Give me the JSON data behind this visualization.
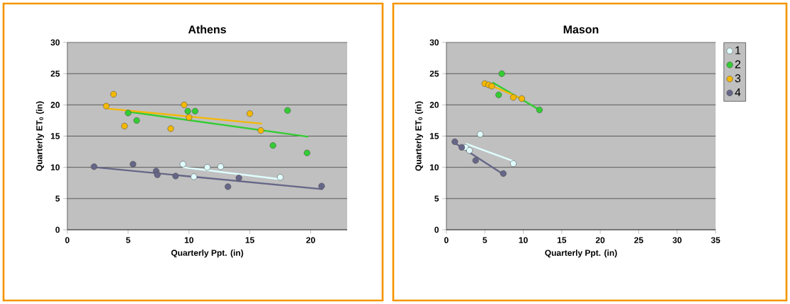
{
  "chart_data": [
    {
      "type": "scatter",
      "title": "Athens",
      "xlabel": "Quarterly Ppt. (in)",
      "ylabel": "Quarterly ET$_{0}$ (in)",
      "xlim": [
        0,
        23
      ],
      "ylim": [
        0,
        30
      ],
      "xticks": [
        0,
        5,
        10,
        15,
        20
      ],
      "yticks": [
        0,
        5,
        10,
        15,
        20,
        25,
        30
      ],
      "grid": "y",
      "legend": false,
      "series": [
        {
          "color": "#e0ffff",
          "marker": "circle",
          "x": [
            9.5,
            10.4,
            11.5,
            12.6,
            17.5
          ],
          "values": [
            10.5,
            8.5,
            10,
            10.1,
            8.4
          ]
        },
        {
          "color": "#33cc33",
          "marker": "circle",
          "x": [
            5,
            5.7,
            9.9,
            10.5,
            16.9,
            18.1,
            19.7
          ],
          "values": [
            18.7,
            17.5,
            19,
            19,
            13.5,
            19.1,
            12.3
          ]
        },
        {
          "color": "#f5b800",
          "marker": "circle",
          "x": [
            3.2,
            3.8,
            4.7,
            8.5,
            9.6,
            10,
            15,
            15.9
          ],
          "values": [
            19.8,
            21.7,
            16.6,
            16.2,
            20,
            18,
            18.6,
            15.9
          ]
        },
        {
          "color": "#666688",
          "marker": "circle",
          "x": [
            2.2,
            5.4,
            7.3,
            7.4,
            8.9,
            13.2,
            14.1,
            20.9
          ],
          "values": [
            10.1,
            10.5,
            9.4,
            8.8,
            8.6,
            6.9,
            8.3,
            7
          ]
        },
        {
          "type": "line",
          "marker": "none",
          "color": "#e0ffff",
          "x": [
            9.5,
            17.5
          ],
          "values": [
            10,
            8.1
          ]
        },
        {
          "type": "line",
          "marker": "none",
          "color": "#33cc33",
          "x": [
            5,
            19.8
          ],
          "values": [
            18.9,
            14.9
          ]
        },
        {
          "type": "line",
          "marker": "none",
          "color": "#f5b800",
          "x": [
            3.3,
            16
          ],
          "values": [
            19.4,
            17
          ]
        },
        {
          "type": "line",
          "marker": "none",
          "color": "#666688",
          "x": [
            2.3,
            21
          ],
          "values": [
            10,
            6.5
          ]
        }
      ]
    },
    {
      "type": "scatter",
      "title": "Mason",
      "xlabel": "Quarterly Ppt. (in)",
      "ylabel": "Quarterly ET$_{0}$ (in)",
      "xlim": [
        0,
        35
      ],
      "ylim": [
        0,
        30
      ],
      "xticks": [
        0,
        5,
        10,
        15,
        20,
        25,
        30,
        35
      ],
      "yticks": [
        0,
        5,
        10,
        15,
        20,
        25,
        30
      ],
      "grid": "y",
      "legend": "right",
      "series": [
        {
          "name": "1",
          "marker": "circle",
          "color": "#e0ffff",
          "x": [
            2.5,
            3,
            4.4,
            8.7
          ],
          "values": [
            13.2,
            12.7,
            15.3,
            10.6
          ]
        },
        {
          "name": "2",
          "marker": "circle",
          "color": "#33cc33",
          "x": [
            6.8,
            7.2,
            12.1
          ],
          "values": [
            21.6,
            25,
            19.2
          ]
        },
        {
          "name": "3",
          "marker": "circle",
          "color": "#f5b800",
          "x": [
            5,
            5.5,
            5.9,
            8.7,
            9.8
          ],
          "values": [
            23.4,
            23.2,
            23,
            21.2,
            21
          ]
        },
        {
          "name": "4",
          "marker": "circle",
          "color": "#666688",
          "x": [
            1.1,
            2,
            3.8,
            7.4
          ],
          "values": [
            14.1,
            13.2,
            11.1,
            9
          ]
        },
        {
          "type": "line",
          "marker": "none",
          "color": "#e0ffff",
          "x": [
            2.5,
            8.7
          ],
          "values": [
            13.8,
            11
          ]
        },
        {
          "type": "line",
          "marker": "none",
          "color": "#33cc33",
          "x": [
            6,
            12.1
          ],
          "values": [
            23.6,
            19.2
          ]
        },
        {
          "type": "line",
          "marker": "none",
          "color": "#f5b800",
          "x": [
            5,
            9.8
          ],
          "values": [
            23.5,
            21
          ]
        },
        {
          "type": "line",
          "marker": "none",
          "color": "#666688",
          "x": [
            1.1,
            7.4
          ],
          "values": [
            13.9,
            8.9
          ]
        }
      ]
    }
  ]
}
